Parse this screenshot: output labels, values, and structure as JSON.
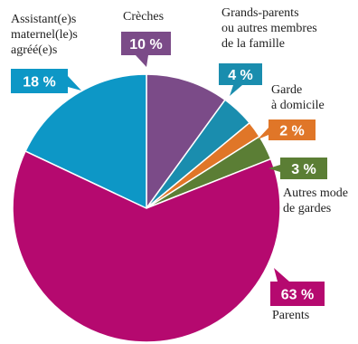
{
  "chart_data": {
    "type": "pie",
    "title": "",
    "slices": [
      {
        "label": "Crèches",
        "label_lines": [
          "Crèches"
        ],
        "value": 10,
        "display": "10 %",
        "color": "#7b4b88"
      },
      {
        "label": "Grands-parents ou autres membres de la famille",
        "label_lines": [
          "Grands-parents",
          "ou autres membres",
          "de la famille"
        ],
        "value": 4,
        "display": "4 %",
        "color": "#1a8dae"
      },
      {
        "label": "Garde à domicile",
        "label_lines": [
          "Garde",
          "à domicile"
        ],
        "value": 2,
        "display": "2 %",
        "color": "#e07628"
      },
      {
        "label": "Autres modes de gardes",
        "label_lines": [
          "Autres mode",
          "de gardes"
        ],
        "value": 3,
        "display": "3 %",
        "color": "#5b7e35"
      },
      {
        "label": "Parents",
        "label_lines": [
          "Parents"
        ],
        "value": 63,
        "display": "63 %",
        "color": "#b5096f"
      },
      {
        "label": "Assistant(e)s maternel(le)s agréé(e)s",
        "label_lines": [
          "Assistant(e)s",
          "maternel(le)s",
          "agréé(e)s"
        ],
        "value": 18,
        "display": "18 %",
        "color": "#0d97c6"
      }
    ]
  }
}
